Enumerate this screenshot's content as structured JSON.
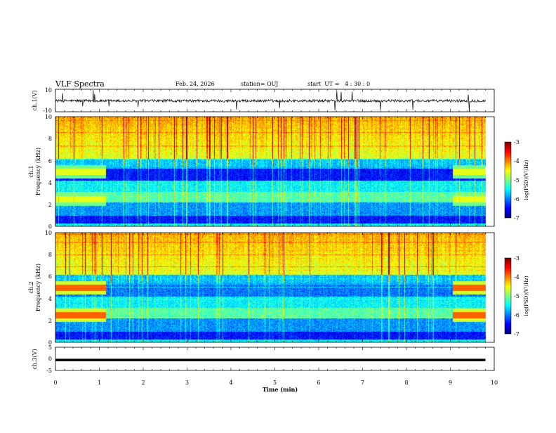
{
  "header": {
    "title": "VLF Spectra",
    "date": "Feb. 24, 2026",
    "station": "station= OUJ",
    "start": "start  UT =   4 : 30 : 0"
  },
  "chart_data": [
    {
      "type": "line",
      "name": "ch1-waveform",
      "ylabel": "ch.1(V)",
      "ylim": [
        -10,
        10
      ],
      "yticks": [
        "10",
        "-10"
      ],
      "xlim": [
        0,
        10
      ]
    },
    {
      "type": "heatmap",
      "name": "ch1-spectrogram",
      "ylabel_line1": "ch.1",
      "ylabel_line2": "Frequency (kHz)",
      "ylim": [
        0,
        10
      ],
      "yticks": [
        "0",
        "2",
        "4",
        "6",
        "8",
        "10"
      ],
      "xlim": [
        0,
        10
      ],
      "colorbar": {
        "label": "log(PSD)(V²/Hz)",
        "range": [
          -7,
          -3
        ],
        "ticks": [
          "-3",
          "-4",
          "-5",
          "-6",
          "-7"
        ]
      },
      "bands_khz": [
        2.5,
        5.0
      ],
      "band_segments_min": [
        [
          0,
          1.15
        ],
        [
          9.05,
          9.8
        ]
      ]
    },
    {
      "type": "heatmap",
      "name": "ch2-spectrogram",
      "ylabel_line1": "ch.2",
      "ylabel_line2": "Frequency (kHz)",
      "ylim": [
        0,
        10
      ],
      "yticks": [
        "0",
        "2",
        "4",
        "6",
        "8",
        "10"
      ],
      "xlim": [
        0,
        10
      ],
      "colorbar": {
        "label": "log(PSD)(V²/Hz)",
        "range": [
          -7,
          -3
        ],
        "ticks": [
          "-3",
          "-4",
          "-5",
          "-6",
          "-7"
        ]
      },
      "bands_khz": [
        2.5,
        5.0
      ],
      "band_segments_min": [
        [
          0,
          1.15
        ],
        [
          9.05,
          9.8
        ]
      ]
    },
    {
      "type": "line",
      "name": "ch3-waveform",
      "ylabel": "ch.3(V)",
      "ylim": [
        -5,
        5
      ],
      "yticks": [
        "5",
        "0",
        "-5"
      ],
      "xlim": [
        0,
        10
      ],
      "level": -0.5
    }
  ],
  "xaxis": {
    "label": "Time (min)",
    "ticks": [
      "0",
      "1",
      "2",
      "3",
      "4",
      "5",
      "6",
      "7",
      "8",
      "9",
      "10"
    ],
    "range": [
      0,
      10
    ]
  },
  "data_end_min": 9.8
}
